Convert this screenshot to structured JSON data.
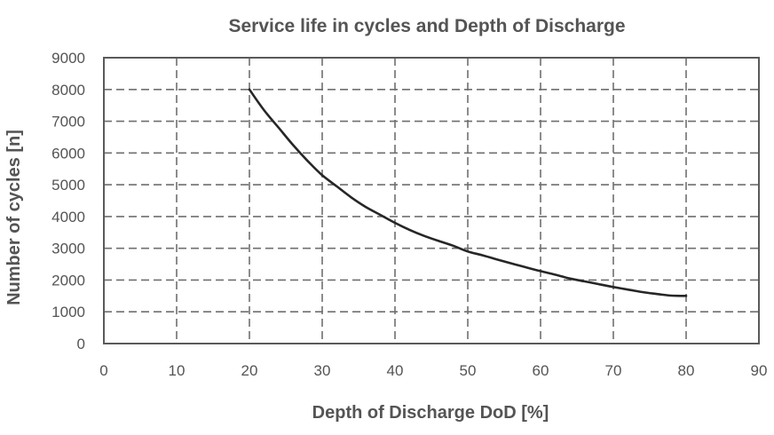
{
  "chart_data": {
    "type": "line",
    "title": "Service life in cycles and Depth of Discharge",
    "xlabel": "Depth of Discharge DoD [%]",
    "ylabel": "Number of cycles [n]",
    "xlim": [
      0,
      90
    ],
    "ylim": [
      0,
      9000
    ],
    "xticks": [
      0,
      10,
      20,
      30,
      40,
      50,
      60,
      70,
      80,
      90
    ],
    "yticks": [
      0,
      1000,
      2000,
      3000,
      4000,
      5000,
      6000,
      7000,
      8000,
      9000
    ],
    "grid": true,
    "grid_style": "dashed",
    "series": [
      {
        "color": "#262626",
        "x": [
          20,
          22,
          24,
          26,
          28,
          30,
          32,
          34,
          36,
          38,
          40,
          42,
          44,
          46,
          48,
          50,
          52,
          54,
          56,
          58,
          60,
          62,
          64,
          66,
          68,
          70,
          72,
          74,
          76,
          78,
          80
        ],
        "y": [
          8000,
          7350,
          6800,
          6250,
          5750,
          5300,
          4950,
          4600,
          4300,
          4050,
          3800,
          3580,
          3390,
          3230,
          3080,
          2900,
          2780,
          2650,
          2520,
          2400,
          2280,
          2170,
          2050,
          1960,
          1870,
          1780,
          1700,
          1620,
          1560,
          1510,
          1500
        ]
      }
    ]
  }
}
